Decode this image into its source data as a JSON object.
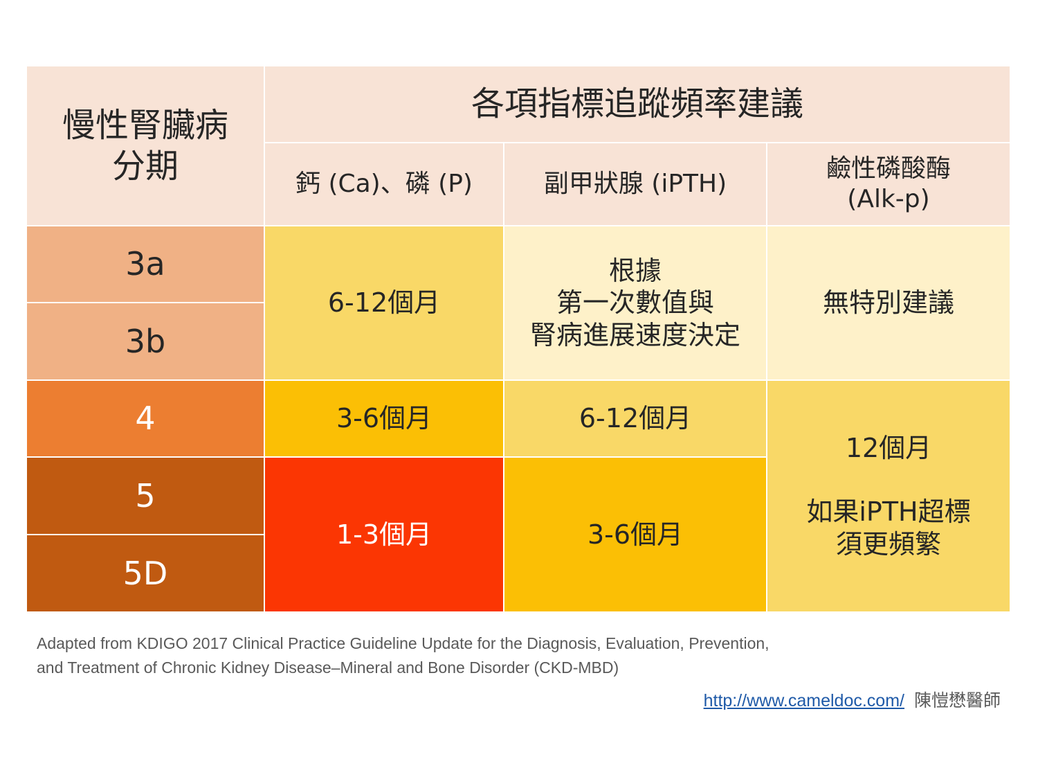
{
  "table": {
    "stage_header": [
      "慢性腎臟病",
      "分期"
    ],
    "group_header": "各項指標追蹤頻率建議",
    "columns": [
      [
        "鈣 (Ca)、磷 (P)"
      ],
      [
        "副甲狀腺 (iPTH)"
      ],
      [
        "鹼性磷酸酶",
        "(Alk-p)"
      ]
    ],
    "stages": [
      "3a",
      "3b",
      "4",
      "5",
      "5D"
    ],
    "cells": {
      "ca_p_3": "6-12個月",
      "ipth_3": [
        "根據",
        "第一次數值與",
        "腎病進展速度決定"
      ],
      "alkp_3": "無特別建議",
      "ca_p_4": "3-6個月",
      "ipth_4": "6-12個月",
      "alkp_45": [
        "12個月",
        "",
        "如果iPTH超標",
        "須更頻繁"
      ],
      "ca_p_5": "1-3個月",
      "ipth_5": "3-6個月"
    }
  },
  "footer": {
    "citation_line1": "Adapted from KDIGO 2017 Clinical Practice Guideline Update for the Diagnosis, Evaluation, Prevention,",
    "citation_line2": "and Treatment of Chronic Kidney Disease–Mineral and Bone Disorder (CKD-MBD)",
    "link": "http://www.cameldoc.com/",
    "author": "陳愷懋醫師"
  },
  "colors": {
    "header_bg": "#f8e3d6",
    "stage_3ab": "#f0b185",
    "stage_4": "#ec7e31",
    "stage_5": "#c05a11",
    "light_yellow": "#f9d867",
    "pale_yellow": "#fef1c9",
    "gold": "#fbbf05",
    "red_orange": "#fb3603"
  }
}
